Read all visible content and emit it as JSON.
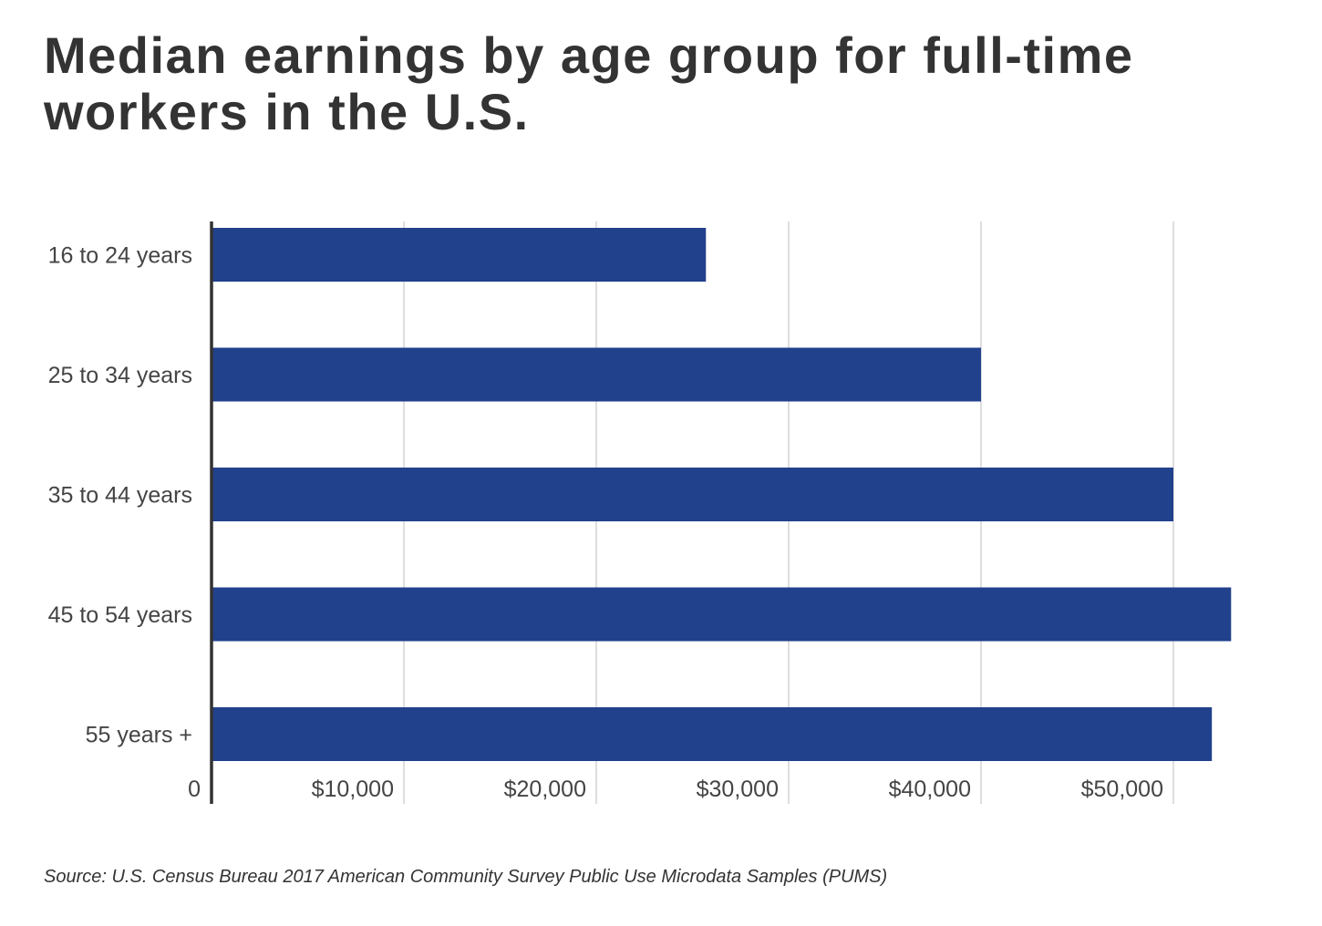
{
  "title": "Median earnings by age group for full-time workers in the U.S.",
  "source": "Source: U.S. Census Bureau 2017 American Community Survey Public Use Microdata Samples (PUMS)",
  "chart_data": {
    "type": "bar",
    "orientation": "horizontal",
    "title": "Median earnings by age group for full-time workers in the U.S.",
    "xlabel": "",
    "ylabel": "",
    "categories": [
      "16 to 24 years",
      "25 to 34 years",
      "35 to 44 years",
      "45 to 54 years",
      "55 years +"
    ],
    "values": [
      25700,
      40000,
      50000,
      53000,
      52000
    ],
    "xlim": [
      0,
      53000
    ],
    "xticks": [
      0,
      10000,
      20000,
      30000,
      40000,
      50000
    ],
    "xtick_labels": [
      "0",
      "$10,000",
      "$20,000",
      "$30,000",
      "$40,000",
      "$50,000"
    ],
    "grid": "vertical",
    "legend": "none",
    "bar_color": "#22418c",
    "grid_color": "#d4d4d4",
    "axis_color": "#333333"
  }
}
